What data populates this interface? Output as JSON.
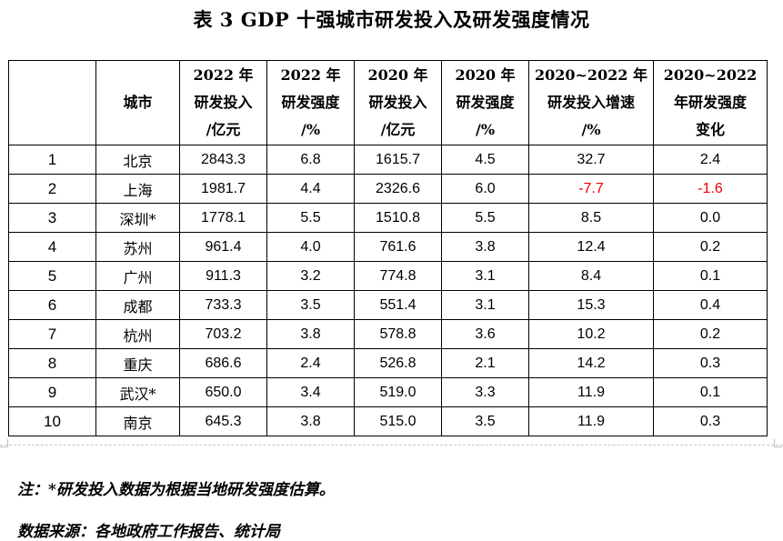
{
  "title": "表 3 GDP 十强城市研发投入及研发强度情况",
  "table": {
    "headers": [
      {
        "lines": [
          ""
        ]
      },
      {
        "lines": [
          "城市"
        ]
      },
      {
        "lines": [
          "2022 年",
          "研发投入",
          "/亿元"
        ]
      },
      {
        "lines": [
          "2022 年",
          "研发强度",
          "/%"
        ]
      },
      {
        "lines": [
          "2020 年",
          "研发投入",
          "/亿元"
        ]
      },
      {
        "lines": [
          "2020 年",
          "研发强度",
          "/%"
        ]
      },
      {
        "lines": [
          "2020~2022 年",
          "研发投入增速",
          "/%"
        ]
      },
      {
        "lines": [
          "2020~2022",
          "年研发强度",
          "变化"
        ]
      }
    ],
    "rows": [
      [
        "1",
        "北京",
        "2843.3",
        "6.8",
        "1615.7",
        "4.5",
        "32.7",
        "2.4"
      ],
      [
        "2",
        "上海",
        "1981.7",
        "4.4",
        "2326.6",
        "6.0",
        "-7.7",
        "-1.6"
      ],
      [
        "3",
        "深圳*",
        "1778.1",
        "5.5",
        "1510.8",
        "5.5",
        "8.5",
        "0.0"
      ],
      [
        "4",
        "苏州",
        "961.4",
        "4.0",
        "761.6",
        "3.8",
        "12.4",
        "0.2"
      ],
      [
        "5",
        "广州",
        "911.3",
        "3.2",
        "774.8",
        "3.1",
        "8.4",
        "0.1"
      ],
      [
        "6",
        "成都",
        "733.3",
        "3.5",
        "551.4",
        "3.1",
        "15.3",
        "0.4"
      ],
      [
        "7",
        "杭州",
        "703.2",
        "3.8",
        "578.8",
        "3.6",
        "10.2",
        "0.2"
      ],
      [
        "8",
        "重庆",
        "686.6",
        "2.4",
        "526.8",
        "2.1",
        "14.2",
        "0.3"
      ],
      [
        "9",
        "武汉*",
        "650.0",
        "3.4",
        "519.0",
        "3.3",
        "11.9",
        "0.1"
      ],
      [
        "10",
        "南京",
        "645.3",
        "3.8",
        "515.0",
        "3.5",
        "11.9",
        "0.3"
      ]
    ]
  },
  "notes": {
    "note": "注：*研发投入数据为根据当地研发强度估算。",
    "source": "数据来源：各地政府工作报告、统计局"
  },
  "colors": {
    "negative": "#ee0000",
    "text": "#000000",
    "border": "#000000"
  }
}
